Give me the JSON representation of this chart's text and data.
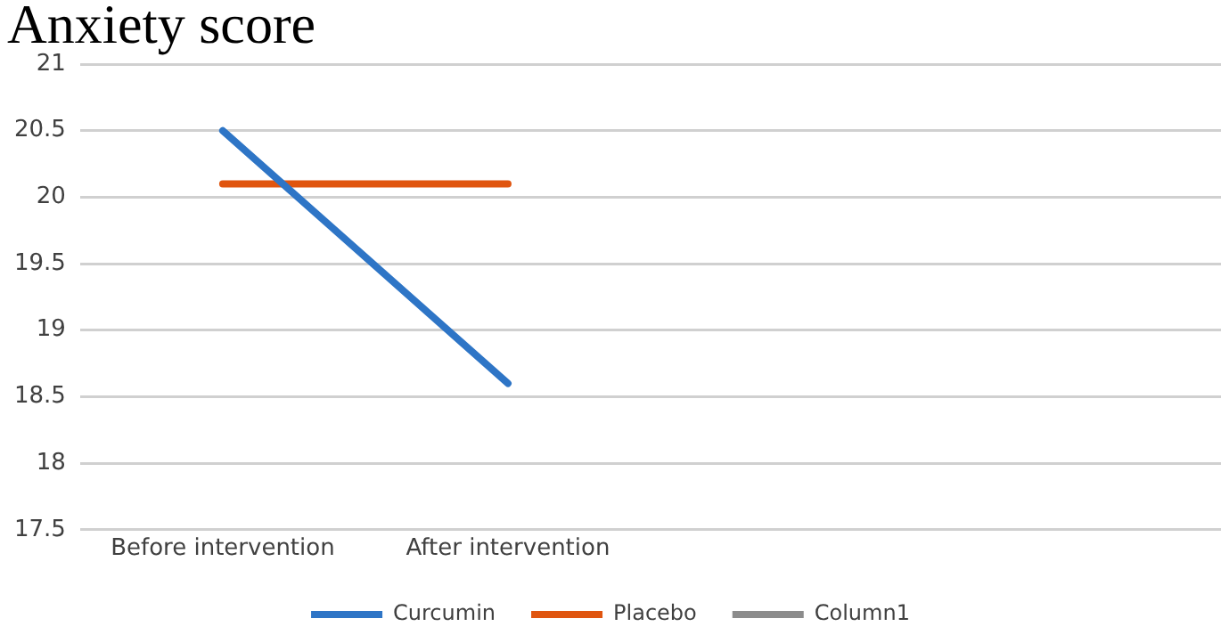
{
  "chart_data": {
    "type": "line",
    "title": "Anxiety score",
    "categories": [
      "Before intervention",
      "After intervention",
      null,
      null
    ],
    "series": [
      {
        "name": "Curcumin",
        "color": "#2e75c6",
        "values": [
          20.5,
          18.6,
          null,
          null
        ]
      },
      {
        "name": "Placebo",
        "color": "#e0550f",
        "values": [
          20.1,
          20.1,
          null,
          null
        ]
      },
      {
        "name": "Column1",
        "color": "#8c8c8c",
        "values": [
          null,
          null,
          null,
          null
        ]
      }
    ],
    "ylim": [
      17.5,
      21
    ],
    "yticks": [
      17.5,
      18,
      18.5,
      19,
      19.5,
      20,
      20.5,
      21
    ],
    "grid": "y",
    "legend": "bottom",
    "marker": "none",
    "line_style": "solid"
  }
}
